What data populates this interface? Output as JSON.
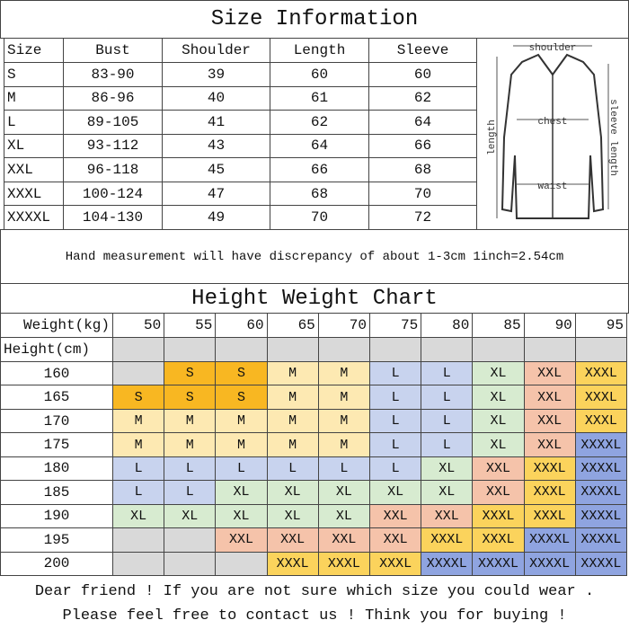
{
  "size_information": {
    "title": "Size Information",
    "headers": [
      "Size",
      "Bust",
      "Shoulder",
      "Length",
      "Sleeve"
    ],
    "rows": [
      [
        "S",
        "83-90",
        39,
        60,
        60
      ],
      [
        "M",
        "86-96",
        40,
        61,
        62
      ],
      [
        "L",
        "89-105",
        41,
        62,
        64
      ],
      [
        "XL",
        "93-112",
        43,
        64,
        66
      ],
      [
        "XXL",
        "96-118",
        45,
        66,
        68
      ],
      [
        "XXXL",
        "100-124",
        47,
        68,
        70
      ],
      [
        "XXXXL",
        "104-130",
        49,
        70,
        72
      ]
    ]
  },
  "diagram": {
    "labels": {
      "shoulder": "shoulder",
      "chest": "chest",
      "waist": "waist",
      "length": "length",
      "sleeve": "sleeve length"
    }
  },
  "note": "Hand measurement will have discrepancy of about 1-3cm  1inch=2.54cm",
  "height_weight_chart": {
    "title": "Height Weight Chart",
    "weight_label": "Weight(kg)",
    "weights": [
      50,
      55,
      60,
      65,
      70,
      75,
      80,
      85,
      90,
      95
    ],
    "height_label": "Height(cm)",
    "heights": [
      160,
      165,
      170,
      175,
      180,
      185,
      190,
      195,
      200
    ],
    "rows": [
      [
        null,
        "S",
        "S",
        "M",
        "M",
        "L",
        "L",
        "XL",
        "XXL",
        "XXXL"
      ],
      [
        "S",
        "S",
        "S",
        "M",
        "M",
        "L",
        "L",
        "XL",
        "XXL",
        "XXXL"
      ],
      [
        "M",
        "M",
        "M",
        "M",
        "M",
        "L",
        "L",
        "XL",
        "XXL",
        "XXXL"
      ],
      [
        "M",
        "M",
        "M",
        "M",
        "M",
        "L",
        "L",
        "XL",
        "XXL",
        "XXXXL"
      ],
      [
        "L",
        "L",
        "L",
        "L",
        "L",
        "L",
        "XL",
        "XXL",
        "XXXL",
        "XXXXL"
      ],
      [
        "L",
        "L",
        "XL",
        "XL",
        "XL",
        "XL",
        "XL",
        "XXL",
        "XXXL",
        "XXXXL"
      ],
      [
        "XL",
        "XL",
        "XL",
        "XL",
        "XL",
        "XXL",
        "XXL",
        "XXXL",
        "XXXL",
        "XXXXL"
      ],
      [
        null,
        null,
        "XXL",
        "XXL",
        "XXL",
        "XXL",
        "XXXL",
        "XXXL",
        "XXXXL",
        "XXXXL"
      ],
      [
        null,
        null,
        null,
        "XXXL",
        "XXXL",
        "XXXL",
        "XXXXL",
        "XXXXL",
        "XXXXL",
        "XXXXL"
      ]
    ]
  },
  "footer": [
    "Dear friend ! If you are not sure which size you could wear .",
    "Please feel free to contact us ! Think you for buying !"
  ]
}
